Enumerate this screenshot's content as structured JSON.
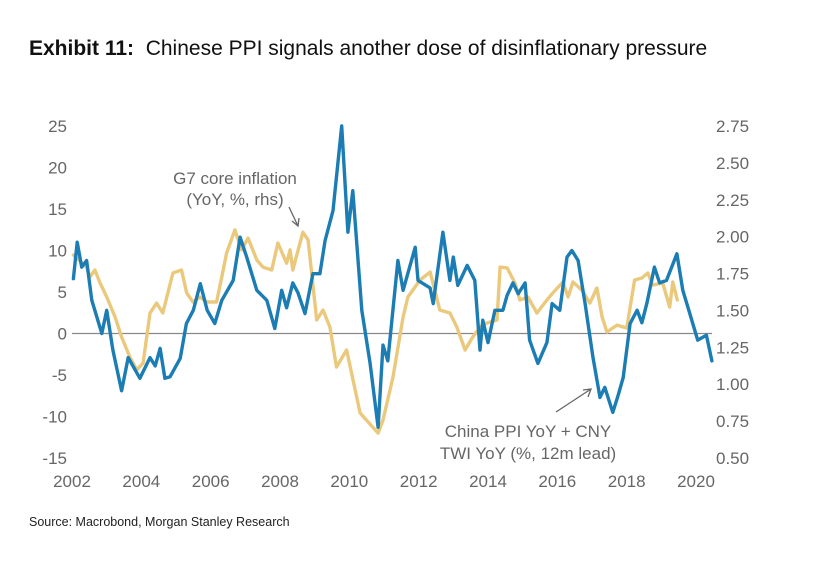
{
  "title": {
    "label": "Exhibit 11:",
    "text": "Chinese PPI signals another dose of disinflationary pressure"
  },
  "source": "Source: Macrobond, Morgan Stanley Research",
  "colors": {
    "china_ppi": "#1b7db4",
    "g7_core": "#ebc97c",
    "zero_line": "#888888",
    "text": "#666666"
  },
  "chart_data": {
    "type": "line",
    "title": "Chinese PPI signals another dose of disinflationary pressure",
    "xlabel": "",
    "ylabel": "",
    "y2label": "",
    "xlim": [
      2002,
      2020.5
    ],
    "ylim": [
      -15,
      25
    ],
    "y2lim": [
      0.5,
      2.75
    ],
    "x_ticks": [
      "2002",
      "2004",
      "2006",
      "2008",
      "2010",
      "2012",
      "2014",
      "2016",
      "2018",
      "2020"
    ],
    "y_ticks": [
      "25",
      "20",
      "15",
      "10",
      "5",
      "0",
      "-5",
      "-10",
      "-15"
    ],
    "y2_ticks": [
      "2.75",
      "2.50",
      "2.25",
      "2.00",
      "1.75",
      "1.50",
      "1.25",
      "1.00",
      "0.75",
      "0.50"
    ],
    "grid": false,
    "zero_line": 0,
    "annotations": {
      "g7": [
        "G7 core inflation",
        "(YoY, %, rhs)"
      ],
      "china": [
        "China PPI YoY + CNY",
        "TWI YoY (%, 12m lead)"
      ]
    },
    "series": [
      {
        "name": "China PPI YoY + CNY TWI YoY (%, 12m lead)",
        "axis": "left",
        "x": [
          2002.04,
          2002.15,
          2002.28,
          2002.42,
          2002.57,
          2002.86,
          2003.0,
          2003.18,
          2003.43,
          2003.62,
          2003.96,
          2004.25,
          2004.4,
          2004.54,
          2004.68,
          2004.83,
          2005.12,
          2005.3,
          2005.5,
          2005.7,
          2005.9,
          2006.12,
          2006.32,
          2006.65,
          2006.85,
          2007.04,
          2007.33,
          2007.62,
          2007.85,
          2008.05,
          2008.19,
          2008.37,
          2008.52,
          2008.72,
          2008.95,
          2009.15,
          2009.3,
          2009.53,
          2009.78,
          2009.96,
          2010.1,
          2010.36,
          2010.6,
          2010.83,
          2010.97,
          2011.11,
          2011.4,
          2011.55,
          2011.9,
          2011.98,
          2012.33,
          2012.42,
          2012.7,
          2012.9,
          2013.0,
          2013.13,
          2013.4,
          2013.62,
          2013.77,
          2013.85,
          2014.0,
          2014.2,
          2014.43,
          2014.55,
          2014.72,
          2014.87,
          2015.07,
          2015.2,
          2015.44,
          2015.7,
          2015.85,
          2016.07,
          2016.28,
          2016.42,
          2016.6,
          2016.8,
          2017.03,
          2017.23,
          2017.37,
          2017.6,
          2017.75,
          2017.9,
          2018.1,
          2018.3,
          2018.44,
          2018.58,
          2018.8,
          2018.95,
          2019.15,
          2019.45,
          2019.62,
          2019.88,
          2020.05,
          2020.3,
          2020.46
        ],
        "y": [
          6.6,
          11,
          8,
          8.8,
          4,
          0,
          2.8,
          -2,
          -6.9,
          -2.9,
          -5.4,
          -2.9,
          -3.9,
          -1.8,
          -5.4,
          -5.2,
          -3,
          1.2,
          2.8,
          6,
          2.8,
          1.2,
          4,
          6.4,
          11.6,
          9.2,
          5.2,
          4,
          0.6,
          5.2,
          3.1,
          6.1,
          4.9,
          2.4,
          7.2,
          7.2,
          11.2,
          14.8,
          25,
          12.2,
          17.2,
          2.8,
          -3.6,
          -11.3,
          -1.4,
          -3.3,
          8.8,
          5.2,
          10.4,
          6.4,
          5.5,
          3.6,
          12.2,
          6.4,
          9.2,
          5.8,
          8.2,
          6.4,
          -2,
          1.6,
          -1.1,
          2.8,
          2.8,
          4.6,
          6.1,
          4.8,
          6.1,
          -0.8,
          -3.6,
          -1.1,
          3.6,
          2.8,
          9.2,
          10,
          8.8,
          3.6,
          -2.9,
          -7.7,
          -6.5,
          -9.5,
          -7.5,
          -5.3,
          1.2,
          2.8,
          1.3,
          3.6,
          8,
          6.1,
          6.4,
          9.6,
          5.2,
          1.6,
          -0.8,
          -0.2,
          -3.3
        ]
      },
      {
        "name": "G7 core inflation (YoY, %, rhs)",
        "axis": "right",
        "x": [
          2002.04,
          2002.42,
          2002.52,
          2002.66,
          2002.81,
          2003.0,
          2003.24,
          2003.43,
          2003.67,
          2003.87,
          2004.05,
          2004.25,
          2004.44,
          2004.62,
          2004.73,
          2004.91,
          2005.16,
          2005.31,
          2005.49,
          2005.69,
          2005.89,
          2006.17,
          2006.32,
          2006.46,
          2006.7,
          2006.89,
          2007.08,
          2007.33,
          2007.51,
          2007.76,
          2007.94,
          2008.19,
          2008.29,
          2008.37,
          2008.66,
          2008.81,
          2009.06,
          2009.24,
          2009.44,
          2009.63,
          2009.92,
          2010.31,
          2010.83,
          2010.97,
          2011.26,
          2011.55,
          2011.69,
          2012.04,
          2012.33,
          2012.61,
          2012.9,
          2013.1,
          2013.34,
          2013.54,
          2013.77,
          2013.97,
          2014.26,
          2014.35,
          2014.55,
          2014.78,
          2014.92,
          2015.15,
          2015.41,
          2015.7,
          2015.87,
          2016.16,
          2016.31,
          2016.45,
          2016.71,
          2016.94,
          2017.14,
          2017.29,
          2017.43,
          2017.72,
          2018.0,
          2018.23,
          2018.44,
          2018.61,
          2018.75,
          2019.04,
          2019.24,
          2019.33,
          2019.46
        ],
        "y": [
          1.876,
          1.794,
          1.727,
          1.774,
          1.686,
          1.591,
          1.456,
          1.32,
          1.184,
          1.096,
          1.144,
          1.483,
          1.55,
          1.483,
          1.584,
          1.754,
          1.774,
          1.618,
          1.557,
          1.591,
          1.557,
          1.557,
          1.727,
          1.889,
          2.045,
          1.91,
          1.99,
          1.842,
          1.794,
          1.774,
          1.957,
          1.82,
          1.91,
          1.774,
          2.03,
          1.977,
          1.435,
          1.503,
          1.388,
          1.117,
          1.232,
          0.805,
          0.669,
          0.757,
          1.049,
          1.456,
          1.591,
          1.706,
          1.76,
          1.503,
          1.483,
          1.388,
          1.232,
          1.313,
          1.388,
          1.415,
          1.435,
          1.794,
          1.788,
          1.686,
          1.571,
          1.591,
          1.483,
          1.571,
          1.618,
          1.693,
          1.591,
          1.693,
          1.638,
          1.55,
          1.652,
          1.456,
          1.354,
          1.401,
          1.381,
          1.706,
          1.72,
          1.754,
          1.672,
          1.686,
          1.523,
          1.693,
          1.571
        ]
      }
    ]
  }
}
